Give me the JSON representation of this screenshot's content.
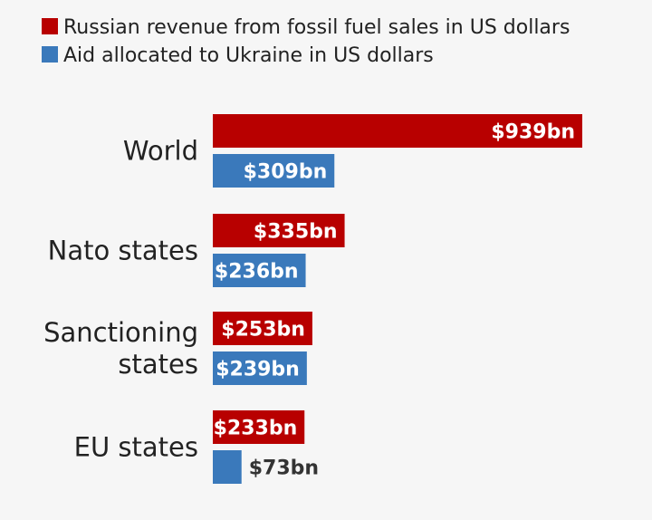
{
  "chart_data": {
    "type": "bar",
    "orientation": "horizontal",
    "categories": [
      "World",
      "Nato states",
      "Sanctioning states",
      "EU states"
    ],
    "category_lines": [
      [
        "World"
      ],
      [
        "Nato states"
      ],
      [
        "Sanctioning",
        "states"
      ],
      [
        "EU states"
      ]
    ],
    "series": [
      {
        "name": "Russian revenue from fossil fuel sales in US dollars",
        "color": "#b80000",
        "values": [
          939,
          335,
          253,
          233
        ],
        "labels": [
          "$939bn",
          "$335bn",
          "$253bn",
          "$233bn"
        ]
      },
      {
        "name": "Aid allocated to Ukraine in US dollars",
        "color": "#3a79bb",
        "values": [
          309,
          236,
          239,
          73
        ],
        "labels": [
          "$309bn",
          "$236bn",
          "$239bn",
          "$73bn"
        ]
      }
    ],
    "unit": "US$ billion",
    "xlim": [
      0,
      939
    ],
    "grid": false,
    "legend_position": "top-left",
    "title": "",
    "xlabel": "",
    "ylabel": ""
  }
}
